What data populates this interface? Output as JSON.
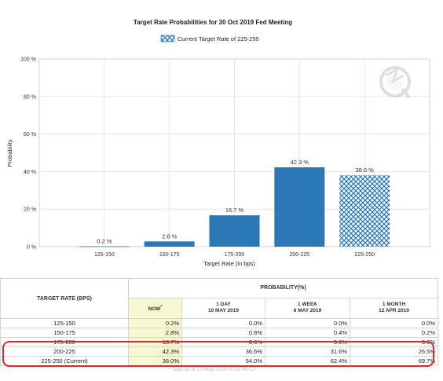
{
  "chart_data": {
    "type": "bar",
    "title": "Target Rate Probabilities for 30 Oct 2019 Fed Meeting",
    "legend": "Current Target Rate of 225-250",
    "xlabel": "Target Rate (in bps)",
    "ylabel": "Probability",
    "ylim": [
      0,
      100
    ],
    "yticks": [
      "0 %",
      "20 %",
      "40 %",
      "60 %",
      "80 %",
      "100 %"
    ],
    "categories": [
      "125-150",
      "150-175",
      "175-200",
      "200-225",
      "225-250"
    ],
    "values": [
      0.2,
      2.8,
      16.7,
      42.3,
      38.0
    ],
    "data_labels": [
      "0.2 %",
      "2.8 %",
      "16.7 %",
      "42.3 %",
      "38.0 %"
    ],
    "current_category": "225-250",
    "grid": true,
    "legend_position": "top-center",
    "colors": {
      "bar": "#2a78b5",
      "hatch": "#2a78b5"
    }
  },
  "table": {
    "target_rate_header": "TARGET RATE (BPS)",
    "probability_header": "PROBABILITY(%)",
    "columns": [
      {
        "line1": "NOW",
        "line2": "",
        "sup": "*"
      },
      {
        "line1": "1 DAY",
        "line2": "10 MAY 2019",
        "sup": ""
      },
      {
        "line1": "1 WEEK",
        "line2": "6 MAY 2019",
        "sup": ""
      },
      {
        "line1": "1 MONTH",
        "line2": "12 APR 2019",
        "sup": ""
      }
    ],
    "rows": [
      {
        "rate": "125-150",
        "values": [
          "0.2%",
          "0.0%",
          "0.0%",
          "0.0%"
        ]
      },
      {
        "rate": "150-175",
        "values": [
          "2.8%",
          "0.8%",
          "0.4%",
          "0.2%"
        ]
      },
      {
        "rate": "175-200",
        "values": [
          "16.7%",
          "8.6%",
          "5.6%",
          "3.6%"
        ]
      },
      {
        "rate": "200-225",
        "values": [
          "42.3%",
          "36.6%",
          "31.6%",
          "26.5%"
        ]
      },
      {
        "rate": "225-250 (Current)",
        "values": [
          "38.0%",
          "54.0%",
          "62.4%",
          "69.7%"
        ]
      }
    ],
    "footnote": "* Data as of 13 May 2019 05:02:45 CT"
  }
}
